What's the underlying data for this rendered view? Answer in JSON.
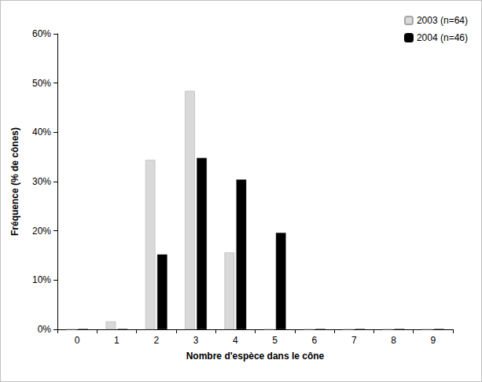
{
  "chart_data": {
    "type": "bar",
    "x_label": "Nombre d'espèce dans le cône",
    "y_label": "Fréquence (% de cônes)",
    "categories": [
      "0",
      "1",
      "2",
      "3",
      "4",
      "5",
      "6",
      "7",
      "8",
      "9"
    ],
    "series": [
      {
        "name": "2003 (n=64)",
        "color": "#d9d9d9",
        "values": [
          0,
          1.6,
          34.4,
          48.4,
          15.6,
          0,
          0,
          0,
          0,
          0
        ]
      },
      {
        "name": "2004 (n=46)",
        "color": "#000000",
        "values": [
          0,
          0,
          15.2,
          34.8,
          30.4,
          19.6,
          0,
          0,
          0,
          0
        ]
      }
    ],
    "ylim": [
      0,
      60
    ],
    "yticks": [
      {
        "value": 0,
        "label": "0%"
      },
      {
        "value": 10,
        "label": "10%"
      },
      {
        "value": 20,
        "label": "20%"
      },
      {
        "value": 30,
        "label": "30%"
      },
      {
        "value": 40,
        "label": "40%"
      },
      {
        "value": 50,
        "label": "50%"
      },
      {
        "value": 60,
        "label": "60%"
      }
    ],
    "grid": false,
    "legend": "upper right"
  }
}
